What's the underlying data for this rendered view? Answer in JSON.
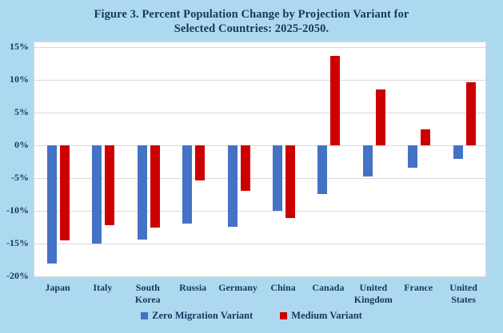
{
  "figure": {
    "title_line1": "Figure 3. Percent Population Change by Projection Variant for",
    "title_line2": "Selected Countries: 2025-2050."
  },
  "colors": {
    "background": "#ADD9F0",
    "plot_background": "#FFFFFF",
    "gridline": "#D9D9D9",
    "plot_border": "#D3D9DE",
    "text": "#17375E",
    "zero_migration_blue": "#4472C4",
    "medium_red": "#CC0000"
  },
  "chart_data": {
    "type": "bar",
    "title": "Figure 3. Percent Population Change by Projection Variant for Selected Countries: 2025-2050.",
    "categories": [
      "Japan",
      "Italy",
      "South Korea",
      "Russia",
      "Germany",
      "China",
      "Canada",
      "United Kingdom",
      "France",
      "United States"
    ],
    "series": [
      {
        "name": "Zero Migration Variant",
        "color": "#4472C4",
        "values": [
          -18.0,
          -15.0,
          -14.4,
          -12.0,
          -12.4,
          -10.0,
          -7.4,
          -4.8,
          -3.4,
          -2.1
        ]
      },
      {
        "name": "Medium Variant",
        "color": "#CC0000",
        "values": [
          -14.5,
          -12.2,
          -12.6,
          -5.4,
          -6.9,
          -11.1,
          13.7,
          8.6,
          2.4,
          9.7
        ]
      }
    ],
    "xlabel": "",
    "ylabel": "",
    "ylim": [
      -20,
      15
    ],
    "yticks": [
      15,
      10,
      5,
      0,
      -5,
      -10,
      -15,
      -20
    ],
    "ytick_labels": [
      "15%",
      "10%",
      "5%",
      "0%",
      "-5%",
      "-10%",
      "-15%",
      "-20%"
    ],
    "grid": true,
    "legend_position": "bottom"
  }
}
